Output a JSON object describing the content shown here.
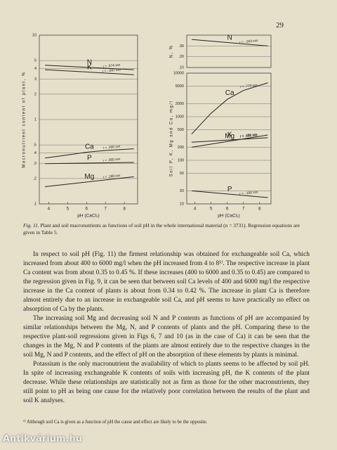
{
  "page_number": "29",
  "chart_data": [
    {
      "type": "line",
      "ylabel": "Macronutrient content of plant, %",
      "xlabel": "pH (CaCl₂)",
      "log_y": true,
      "grid": true,
      "xlim": [
        3.5,
        8.7
      ],
      "xticks": [
        4,
        5,
        6,
        7,
        8
      ],
      "ylim": [
        0.1,
        10
      ],
      "yticks": [
        10,
        5,
        4,
        3,
        2,
        1,
        {
          "value": 0.5,
          "label": ".5"
        },
        {
          "value": 0.4,
          "label": ".4"
        },
        {
          "value": 0.3,
          "label": ".3"
        },
        {
          "value": 0.2,
          "label": ".2"
        },
        {
          "value": 0.1,
          "label": ".1"
        }
      ],
      "series": [
        {
          "name": "N",
          "color": "#222",
          "annotation": "r = .074 xxx",
          "x": [
            3.8,
            8.5
          ],
          "values": [
            4.4,
            3.9
          ]
        },
        {
          "name": "K",
          "color": "#222",
          "annotation": "r = -.047 xxx",
          "x": [
            3.8,
            8.5
          ],
          "values": [
            3.9,
            3.4
          ]
        },
        {
          "name": "Ca",
          "color": "#222",
          "annotation": "r = .266 xxx",
          "x": [
            3.8,
            5,
            6,
            7,
            8.5
          ],
          "values": [
            0.35,
            0.38,
            0.41,
            0.43,
            0.45
          ]
        },
        {
          "name": "P",
          "color": "#222",
          "annotation": "r = .050 xxx",
          "x": [
            3.8,
            8.5
          ],
          "values": [
            0.3,
            0.31
          ]
        },
        {
          "name": "Mg",
          "color": "#222",
          "annotation": "r = .188 xxx",
          "x": [
            3.8,
            8.5
          ],
          "values": [
            0.16,
            0.21
          ]
        }
      ]
    },
    {
      "type": "line",
      "ylabel": "N, %",
      "log_y": false,
      "grid": true,
      "xlim": [
        3.5,
        8.7
      ],
      "ylim": [
        0.1,
        0.4
      ],
      "yticks": [
        {
          "value": 0.1,
          "label": ".10"
        },
        {
          "value": 0.2,
          "label": ".20"
        },
        {
          "value": 0.3,
          "label": ".30"
        }
      ],
      "series": [
        {
          "name": "N",
          "color": "#222",
          "annotation": "r = -.203 xxx",
          "x": [
            3.8,
            8.5
          ],
          "values": [
            0.36,
            0.3
          ]
        }
      ]
    },
    {
      "type": "line",
      "ylabel": "Soil P, K, Mg and Ca, mg/l",
      "xlabel": "pH (CaCl₂)",
      "log_y": true,
      "grid": true,
      "xlim": [
        3.5,
        8.7
      ],
      "xticks": [
        4,
        5,
        6,
        7,
        8
      ],
      "ylim": [
        10,
        10000
      ],
      "yticks": [
        10,
        20,
        50,
        100,
        200,
        500,
        1000,
        2000,
        5000,
        10000
      ],
      "series": [
        {
          "name": "Ca",
          "color": "#222",
          "annotation": "r = .773 xxx",
          "x": [
            3.8,
            5,
            6,
            7,
            8.5
          ],
          "values": [
            400,
            1200,
            2500,
            4000,
            6000
          ]
        },
        {
          "name": "Mg",
          "color": "#222",
          "annotation": "r = .496 xxx",
          "x": [
            3.8,
            8.5
          ],
          "values": [
            200,
            380
          ]
        },
        {
          "name": "K",
          "color": "#222",
          "annotation": "r = .165 xxx",
          "x": [
            3.8,
            8.5
          ],
          "values": [
            260,
            330
          ]
        },
        {
          "name": "P",
          "color": "#222",
          "annotation": "r = -.190 xxx",
          "x": [
            3.8,
            8.5
          ],
          "values": [
            20,
            14
          ]
        }
      ]
    }
  ],
  "caption_label": "Fig. 11.",
  "caption_text": "Plant and soil macronutrients as functions of soil pH in the whole international material (n = 3731). Regression equations are given in Table 5.",
  "paragraphs": [
    "In respect to soil pH (Fig. 11) the firmest relationship was obtained for exchangeable soil Ca, which increased from about 400 to 6000 mg/l when the pH increased from 4 to 8¹⁾. The respective increase in plant Ca content was from about 0.35 to 0.45 %. If these increases (400 to 6000 and 0.35 to 0.45) are compared to the regression given in Fig. 9, it can be seen that between soil Ca levels of 400 and 6000 mg/l the respective increase in the Ca content of plants is about from 0.34 to 0.42 %. The increase in plant Ca is therefore almost entirely due to an increase in exchangeable soil Ca, and pH seems to have practically no effect on absorption of Ca by the plants.",
    "The increasing soil Mg and decreasing soil N and P contents as functions of pH are accompanied by similar relationships between the Mg, N, and P contents of plants and the pH. Comparing these to the respective plant-soil regressions given in Figs 6, 7 and 10 (as in the case of Ca) it can be seen that the changes in the Mg, N and P contents of the plants are almost entirely due to the respective changes in the soil Mg, N and P contents, and the effect of pH on the absorption of these elements by plants is minimal.",
    "Potassium is the only macronutrient the availability of which to plants seems to be affected by soil pH. In spite of increasing exchangeable K contents of soils with increasing pH, the K contents of the plant decrease. While these relationships are statistically not as firm as those for the other macronutrients, they still point to pH as being one cause for the relatively poor correlation between the results of the plant and soil K analyses."
  ],
  "footnote": "¹⁾ Although soil Ca is given as a function of pH the cause and effect are likely to be the opposite.",
  "watermark": "Antikvárium.hu"
}
